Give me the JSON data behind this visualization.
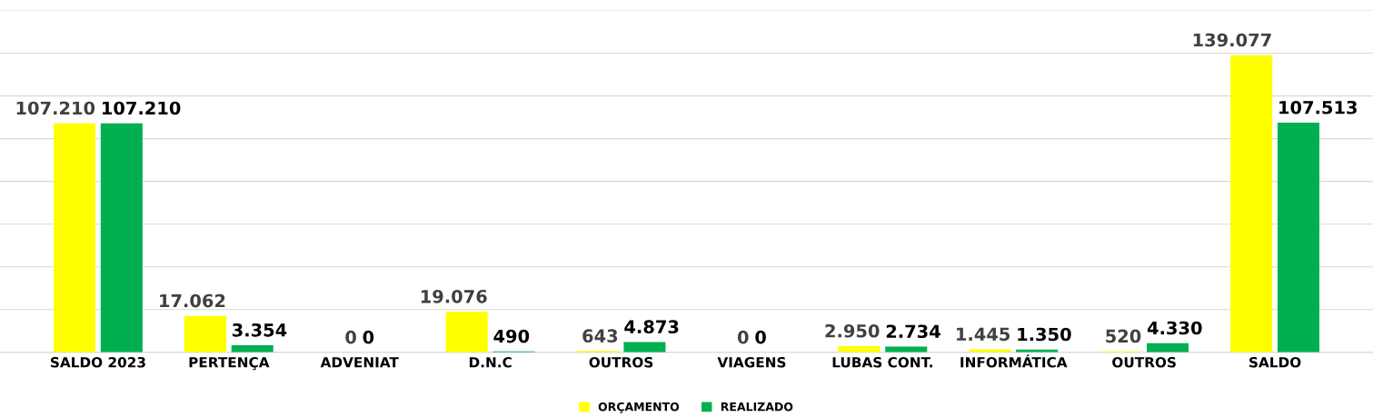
{
  "chart_data": {
    "type": "bar",
    "categories": [
      "SALDO 2023",
      "PERTENÇA",
      "ADVENIAT",
      "D.N.C",
      "OUTROS",
      "VIAGENS",
      "LUBAS CONT.",
      "INFORMÁTICA",
      "OUTROS",
      "SALDO"
    ],
    "series": [
      {
        "name": "ORÇAMENTO",
        "color": "#ffff00",
        "values": [
          107210,
          17062,
          0,
          19076,
          643,
          0,
          2950,
          1445,
          520,
          139077
        ],
        "value_labels": [
          "107.210",
          "17.062",
          "0",
          "19.076",
          "643",
          "0",
          "2.950",
          "1.445",
          "520",
          "139.077"
        ]
      },
      {
        "name": "REALIZADO",
        "color": "#00b050",
        "values": [
          107210,
          3354,
          0,
          490,
          4873,
          0,
          2734,
          1350,
          4330,
          107513
        ],
        "value_labels": [
          "107.210",
          "3.354",
          "0",
          "490",
          "4.873",
          "0",
          "2.734",
          "1.350",
          "4.330",
          "107.513"
        ]
      }
    ],
    "ylim": [
      0,
      160000
    ],
    "yticks": [
      {
        "value": 0,
        "label": null
      },
      {
        "value": 20000,
        "label": null
      },
      {
        "value": 40000,
        "label": null
      },
      {
        "value": 60000,
        "label": null
      },
      {
        "value": 80000,
        "label": null
      },
      {
        "value": 100000,
        "label": null
      },
      {
        "value": 120000,
        "label": null
      },
      {
        "value": 140000,
        "label": null
      },
      {
        "value": 160000,
        "label": null
      }
    ],
    "tick_labels": "x",
    "grid": "y",
    "legend": "bottom"
  }
}
